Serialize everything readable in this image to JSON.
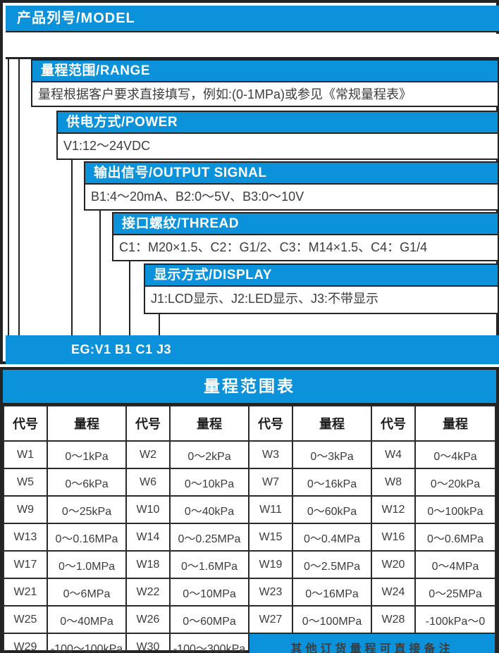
{
  "colors": {
    "accent_blue": "#0b92da",
    "frame_dark": "#242424",
    "table_border": "#2a2a2a",
    "text_dark": "#3c3c3c",
    "text_white": "#ffffff"
  },
  "model_diagram": {
    "title": "产品列号/MODEL",
    "model_value": "",
    "sections": [
      {
        "label": "量程范围/RANGE",
        "content": "量程根据客户要求直接填写，例如:(0-1MPa)或参见《常规量程表》"
      },
      {
        "label": "供电方式/POWER",
        "content": "V1:12～24VDC"
      },
      {
        "label": "输出信号/OUTPUT SIGNAL",
        "content": "B1:4～20mA、B2:0～5V、B3:0～10V"
      },
      {
        "label": "接口螺纹/THREAD",
        "content": "C1：M20×1.5、C2：G1/2、C3：M14×1.5、C4：G1/4"
      },
      {
        "label": "显示方式/DISPLAY",
        "content": "J1:LCD显示、J2:LED显示、J3:不带显示"
      }
    ],
    "example": "EG:V1 B1 C1 J3"
  },
  "range_table": {
    "title": "量程范围表",
    "header": [
      "代号",
      "量程",
      "代号",
      "量程",
      "代号",
      "量程",
      "代号",
      "量程"
    ],
    "rows": [
      [
        "W1",
        "0～1kPa",
        "W2",
        "0～2kPa",
        "W3",
        "0～3kPa",
        "W4",
        "0～4kPa"
      ],
      [
        "W5",
        "0～6kPa",
        "W6",
        "0～10kPa",
        "W7",
        "0～16kPa",
        "W8",
        "0～20kPa"
      ],
      [
        "W9",
        "0～25kPa",
        "W10",
        "0～40kPa",
        "W11",
        "0～60kPa",
        "W12",
        "0～100kPa"
      ],
      [
        "W13",
        "0～0.16MPa",
        "W14",
        "0～0.25MPa",
        "W15",
        "0～0.4MPa",
        "W16",
        "0～0.6MPa"
      ],
      [
        "W17",
        "0～1.0MPa",
        "W18",
        "0～1.6MPa",
        "W19",
        "0～2.5MPa",
        "W20",
        "0～4MPa"
      ],
      [
        "W21",
        "0～6MPa",
        "W22",
        "0～10MPa",
        "W23",
        "0～16MPa",
        "W24",
        "0～25MPa"
      ],
      [
        "W25",
        "0～40MPa",
        "W26",
        "0～60MPa",
        "W27",
        "0～100MPa",
        "W28",
        "-100kPa～0"
      ],
      [
        "W29",
        "-100～100kPa",
        "W30",
        "-100～300kPa"
      ]
    ],
    "note": "其他订货量程可直接备注"
  }
}
